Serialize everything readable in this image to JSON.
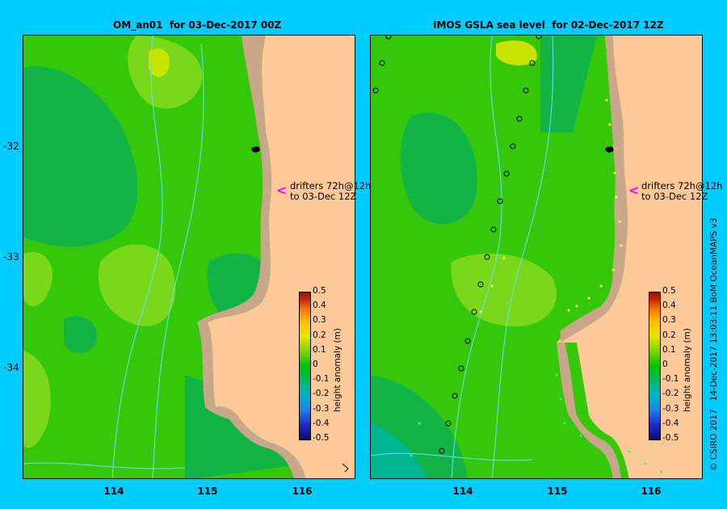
{
  "left_panel": {
    "title": "OM_an01  for 03-Dec-2017 00Z",
    "drifter_label_line1": "drifters 72h@12h",
    "drifter_label_line2": "to 03-Dec 12Z",
    "arrow": "<"
  },
  "right_panel": {
    "title": "IMOS GSLA sea level  for 02-Dec-2017 12Z",
    "drifter_label_line1": "drifters 72h@12h",
    "drifter_label_line2": "to 03-Dec 12Z",
    "arrow": "<"
  },
  "latitude_labels": [
    "-32",
    "-33",
    "-34"
  ],
  "longitude_labels": [
    "114",
    "115",
    "116"
  ],
  "colorbar": {
    "title": "height anomaly (m)",
    "ticks": [
      "0.5",
      "0.4",
      "0.3",
      "0.2",
      "0.1",
      "0",
      "-0.1",
      "-0.2",
      "-0.3",
      "-0.4",
      "-0.5"
    ],
    "colors": [
      "#0b0b6e",
      "#00c400",
      "#8a1a00"
    ]
  },
  "credit": "© CSIRO 2017   14-Dec-2017 13:03:11 BoM OceanMAPS v3",
  "colors": {
    "background": "#00ccff",
    "land": "#fdc998",
    "shelf": "#c8a888",
    "current_lines": "#66e0ff"
  }
}
